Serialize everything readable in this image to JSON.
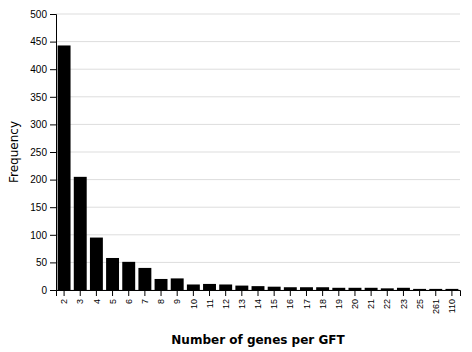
{
  "chart_data": {
    "type": "bar",
    "categories": [
      "2",
      "3",
      "4",
      "5",
      "6",
      "7",
      "8",
      "9",
      "10",
      "11",
      "12",
      "13",
      "14",
      "15",
      "16",
      "17",
      "18",
      "19",
      "20",
      "21",
      "22",
      "23",
      "25",
      "261",
      "110"
    ],
    "values": [
      443,
      205,
      95,
      58,
      51,
      40,
      20,
      21,
      10,
      11,
      10,
      8,
      7,
      6,
      5,
      5,
      5,
      4,
      4,
      4,
      3,
      4,
      2,
      2,
      2
    ],
    "color": "#000000",
    "xlabel": "Number of genes per GFT",
    "ylabel": "Frequency",
    "ylim": [
      0,
      500
    ],
    "yticks": [
      0,
      50,
      100,
      150,
      200,
      250,
      300,
      350,
      400,
      450,
      500
    ],
    "grid": true
  }
}
